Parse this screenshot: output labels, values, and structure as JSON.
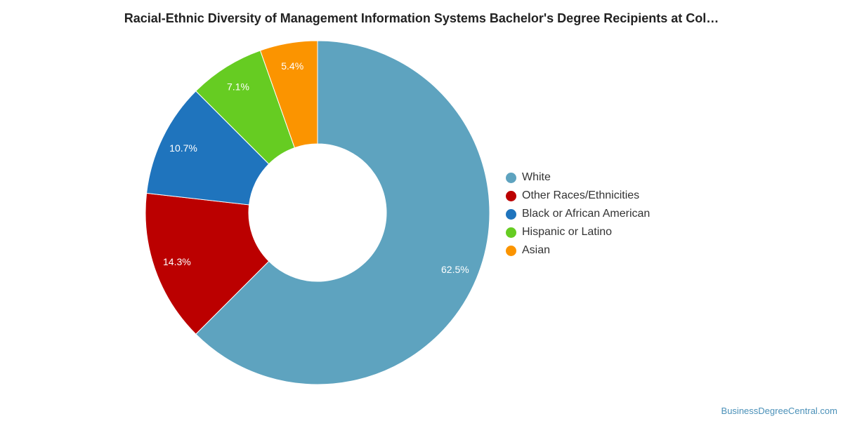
{
  "chart_data": {
    "type": "pie",
    "title": "Racial-Ethnic Diversity of Management Information Systems Bachelor's Degree Recipients at Col…",
    "categories": [
      "White",
      "Other Races/Ethnicities",
      "Black or African American",
      "Hispanic or Latino",
      "Asian"
    ],
    "values": [
      62.5,
      14.3,
      10.7,
      7.1,
      5.4
    ],
    "labels": [
      "62.5%",
      "14.3%",
      "10.7%",
      "7.1%",
      "5.4%"
    ],
    "colors": [
      "#5ea3bf",
      "#bb0000",
      "#1f74bd",
      "#66cc22",
      "#fb9400"
    ],
    "donut": true,
    "legend_position": "right"
  },
  "footer": {
    "source": "BusinessDegreeCentral.com"
  }
}
